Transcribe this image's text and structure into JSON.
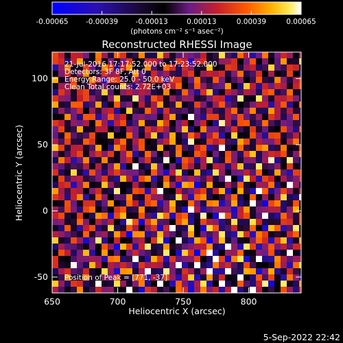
{
  "chart_data": {
    "type": "heatmap",
    "title": "Reconstructed RHESSI Image",
    "xlabel": "Heliocentric X (arcsec)",
    "ylabel": "Heliocentric Y (arcsec)",
    "xlim": [
      650,
      840
    ],
    "ylim": [
      -62,
      120
    ],
    "x_ticks": [
      650,
      700,
      750,
      800
    ],
    "y_ticks": [
      -50,
      0,
      50,
      100
    ],
    "x_tick_labels": [
      "650",
      "700",
      "750",
      "800"
    ],
    "y_tick_labels": [
      "-50",
      "0",
      "50",
      "100"
    ],
    "colorbar": {
      "min": -0.00065,
      "max": 0.00065,
      "ticks": [
        -0.00065,
        -0.00039,
        -0.00013,
        0.00013,
        0.00039,
        0.00065
      ],
      "tick_labels": [
        "-0.00065",
        "-0.00039",
        "-0.00013",
        "0.00013",
        "0.00039",
        "0.00065"
      ],
      "unit_label": "(photons cm⁻² s⁻¹ asec⁻²)",
      "colors": [
        "#0000ff",
        "#3c0aa0",
        "#000000",
        "#6e2082",
        "#c81e2a",
        "#ff6a00",
        "#ffd000",
        "#ffffff"
      ]
    },
    "annotations": [
      "21-Jul-2016 17:17:52.000 to 17:23:52.000",
      "Detectors: 3F 8F, Att 0",
      "Energy Range: 25.0 - 50.0 keV",
      "Clean     Total counts: 2.72E+03"
    ],
    "peak_label": "Position of Peak = [771, -37]",
    "peak": [
      771,
      -37
    ],
    "grid": false
  },
  "footer": {
    "timestamp": "5-Sep-2022 22:42"
  }
}
